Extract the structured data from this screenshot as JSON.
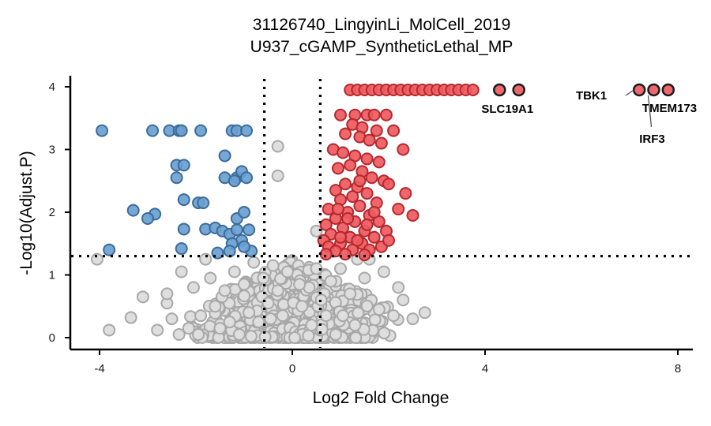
{
  "chart_data": {
    "type": "scatter",
    "title": "31126740_LingyinLi_MolCell_2019",
    "subtitle": "U937_cGAMP_SyntheticLethal_MP",
    "xlabel": "Log2 Fold Change",
    "ylabel": "-Log10(Adjust.P)",
    "xlim": [
      -4.6,
      8.4
    ],
    "ylim": [
      -0.2,
      4.1
    ],
    "x_ticks": [
      -4,
      0,
      4,
      8
    ],
    "y_ticks": [
      0,
      1,
      2,
      3,
      4
    ],
    "grid": false,
    "thresholds": {
      "log2fc": [
        -0.58,
        0.58
      ],
      "neg_log10_p": 1.3
    },
    "colors": {
      "down_fill": "#6b9fcf",
      "down_stroke": "#3a6c9c",
      "up_fill": "#ee5a5f",
      "up_stroke": "#b5282c",
      "ns_fill": "#dedede",
      "ns_stroke": "#a8a8a8",
      "highlight_stroke": "#1a1a1a"
    },
    "series": [
      {
        "group": "down",
        "points": [
          [
            -3.95,
            3.3
          ],
          [
            -2.9,
            3.3
          ],
          [
            -2.55,
            3.3
          ],
          [
            -2.35,
            3.3
          ],
          [
            -2.3,
            3.3
          ],
          [
            -1.9,
            3.3
          ],
          [
            -1.25,
            3.3
          ],
          [
            -1.15,
            3.3
          ],
          [
            -0.95,
            3.3
          ],
          [
            -1.4,
            2.9
          ],
          [
            -2.4,
            2.75
          ],
          [
            -2.25,
            2.75
          ],
          [
            -2.4,
            2.55
          ],
          [
            -1.4,
            2.55
          ],
          [
            -1.15,
            2.55
          ],
          [
            -1.05,
            2.65
          ],
          [
            -0.95,
            2.55
          ],
          [
            -1.2,
            2.5
          ],
          [
            -2.25,
            2.2
          ],
          [
            -1.95,
            2.15
          ],
          [
            -1.85,
            2.15
          ],
          [
            -3.3,
            2.03
          ],
          [
            -2.85,
            1.97
          ],
          [
            -3.0,
            1.9
          ],
          [
            -1.15,
            1.9
          ],
          [
            -1.0,
            2.0
          ],
          [
            -2.25,
            1.73
          ],
          [
            -1.8,
            1.73
          ],
          [
            -1.6,
            1.75
          ],
          [
            -1.45,
            1.7
          ],
          [
            -1.3,
            1.65
          ],
          [
            -1.15,
            1.72
          ],
          [
            -0.9,
            1.72
          ],
          [
            -1.05,
            1.55
          ],
          [
            -1.25,
            1.5
          ],
          [
            -3.8,
            1.4
          ],
          [
            -2.3,
            1.42
          ],
          [
            -1.55,
            1.35
          ],
          [
            -1.3,
            1.38
          ],
          [
            -0.85,
            1.38
          ],
          [
            -1.0,
            1.45
          ]
        ]
      },
      {
        "group": "up",
        "points": [
          [
            1.2,
            3.95
          ],
          [
            1.35,
            3.95
          ],
          [
            1.5,
            3.95
          ],
          [
            1.65,
            3.95
          ],
          [
            1.8,
            3.95
          ],
          [
            1.95,
            3.95
          ],
          [
            2.1,
            3.95
          ],
          [
            2.25,
            3.95
          ],
          [
            2.4,
            3.95
          ],
          [
            2.55,
            3.95
          ],
          [
            2.7,
            3.95
          ],
          [
            2.85,
            3.95
          ],
          [
            3.0,
            3.95
          ],
          [
            3.15,
            3.95
          ],
          [
            3.3,
            3.95
          ],
          [
            3.45,
            3.95
          ],
          [
            3.6,
            3.95
          ],
          [
            3.75,
            3.95
          ],
          [
            1.0,
            3.55
          ],
          [
            1.3,
            3.55
          ],
          [
            1.55,
            3.55
          ],
          [
            1.7,
            3.55
          ],
          [
            1.95,
            3.55
          ],
          [
            1.25,
            3.4
          ],
          [
            1.45,
            3.35
          ],
          [
            1.75,
            3.3
          ],
          [
            2.1,
            3.3
          ],
          [
            1.1,
            3.25
          ],
          [
            1.4,
            3.2
          ],
          [
            1.6,
            3.15
          ],
          [
            1.85,
            3.1
          ],
          [
            2.3,
            3.0
          ],
          [
            0.85,
            3.0
          ],
          [
            1.05,
            2.95
          ],
          [
            1.3,
            2.9
          ],
          [
            1.55,
            2.85
          ],
          [
            1.8,
            2.8
          ],
          [
            1.2,
            2.75
          ],
          [
            0.95,
            2.7
          ],
          [
            1.45,
            2.65
          ],
          [
            1.65,
            2.55
          ],
          [
            1.9,
            2.5
          ],
          [
            2.0,
            2.45
          ],
          [
            1.1,
            2.45
          ],
          [
            1.35,
            2.4
          ],
          [
            0.9,
            2.35
          ],
          [
            1.55,
            2.3
          ],
          [
            2.35,
            2.3
          ],
          [
            1.25,
            2.25
          ],
          [
            1.0,
            2.2
          ],
          [
            1.75,
            2.15
          ],
          [
            1.4,
            2.1
          ],
          [
            2.2,
            2.05
          ],
          [
            0.75,
            2.05
          ],
          [
            1.15,
            2.0
          ],
          [
            1.6,
            1.95
          ],
          [
            2.5,
            1.95
          ],
          [
            0.9,
            1.9
          ],
          [
            1.3,
            1.85
          ],
          [
            1.8,
            1.85
          ],
          [
            0.7,
            1.8
          ],
          [
            1.05,
            1.75
          ],
          [
            1.5,
            1.7
          ],
          [
            1.95,
            1.7
          ],
          [
            0.8,
            1.65
          ],
          [
            1.2,
            1.6
          ],
          [
            1.7,
            1.6
          ],
          [
            0.65,
            1.55
          ],
          [
            1.0,
            1.5
          ],
          [
            1.45,
            1.5
          ],
          [
            1.85,
            1.45
          ],
          [
            0.75,
            1.45
          ],
          [
            1.25,
            1.4
          ],
          [
            1.6,
            1.4
          ],
          [
            0.9,
            1.38
          ],
          [
            1.1,
            1.33
          ],
          [
            1.5,
            1.32
          ],
          [
            0.7,
            1.33
          ],
          [
            1.35,
            1.55
          ],
          [
            1.55,
            1.8
          ],
          [
            1.15,
            1.9
          ],
          [
            0.95,
            2.05
          ],
          [
            1.4,
            2.5
          ],
          [
            1.7,
            2.0
          ],
          [
            1.0,
            1.6
          ],
          [
            2.0,
            1.55
          ]
        ]
      },
      {
        "group": "ns",
        "points": [
          [
            -4.05,
            1.25
          ],
          [
            -3.8,
            0.12
          ],
          [
            -3.35,
            0.32
          ],
          [
            -3.1,
            0.65
          ],
          [
            -2.8,
            0.12
          ],
          [
            -2.6,
            0.55
          ],
          [
            -2.6,
            0.7
          ],
          [
            -2.35,
            0.05
          ],
          [
            -2.15,
            0.15
          ],
          [
            -1.9,
            0.35
          ],
          [
            -1.6,
            0.5
          ],
          [
            -1.4,
            0.75
          ],
          [
            -1.2,
            1.05
          ],
          [
            -1.0,
            0.85
          ],
          [
            -0.8,
            1.2
          ],
          [
            -0.6,
            0.95
          ],
          [
            -0.4,
            1.15
          ],
          [
            -0.3,
            0.75
          ],
          [
            -0.2,
            0.35
          ],
          [
            0.05,
            0.0
          ],
          [
            0.2,
            0.5
          ],
          [
            0.35,
            0.8
          ],
          [
            0.5,
            1.1
          ],
          [
            0.6,
            0.6
          ],
          [
            0.8,
            0.9
          ],
          [
            1.0,
            1.1
          ],
          [
            1.2,
            0.7
          ],
          [
            1.5,
            0.95
          ],
          [
            1.8,
            0.45
          ],
          [
            2.1,
            0.35
          ],
          [
            2.3,
            0.6
          ],
          [
            2.5,
            0.3
          ],
          [
            2.75,
            0.4
          ],
          [
            2.2,
            0.8
          ],
          [
            1.9,
            1.05
          ],
          [
            1.6,
            1.25
          ],
          [
            1.35,
            1.25
          ],
          [
            0.5,
            1.7
          ],
          [
            -0.3,
            2.58
          ],
          [
            -0.3,
            3.05
          ],
          [
            -1.8,
            1.25
          ],
          [
            -2.3,
            1.05
          ],
          [
            -2.5,
            0.3
          ],
          [
            -1.95,
            0.05
          ],
          [
            -1.5,
            0.15
          ],
          [
            -1.1,
            0.05
          ],
          [
            -0.7,
            0.25
          ],
          [
            -0.5,
            0.55
          ],
          [
            0.9,
            0.05
          ],
          [
            1.3,
            0.2
          ],
          [
            -0.9,
            0.4
          ],
          [
            0.4,
            0.2
          ],
          [
            -1.3,
            0.25
          ],
          [
            1.05,
            0.35
          ],
          [
            -2.05,
            0.8
          ],
          [
            -1.7,
            0.95
          ],
          [
            0.7,
            0.35
          ],
          [
            0.15,
            0.85
          ],
          [
            -0.1,
            1.05
          ],
          [
            -0.45,
            0.3
          ]
        ]
      },
      {
        "group": "highlight",
        "points": [
          [
            4.3,
            3.95
          ],
          [
            4.7,
            3.95
          ],
          [
            7.2,
            3.95
          ],
          [
            7.5,
            3.95
          ],
          [
            7.8,
            3.95
          ]
        ]
      }
    ],
    "annotations": [
      {
        "label": "SLC19A1",
        "point": [
          4.3,
          3.95
        ]
      },
      {
        "label": "TBK1",
        "point": [
          7.2,
          3.95
        ]
      },
      {
        "label": "TMEM173",
        "point": [
          7.5,
          3.95
        ]
      },
      {
        "label": "IRF3",
        "point": [
          7.5,
          3.95
        ]
      }
    ]
  }
}
